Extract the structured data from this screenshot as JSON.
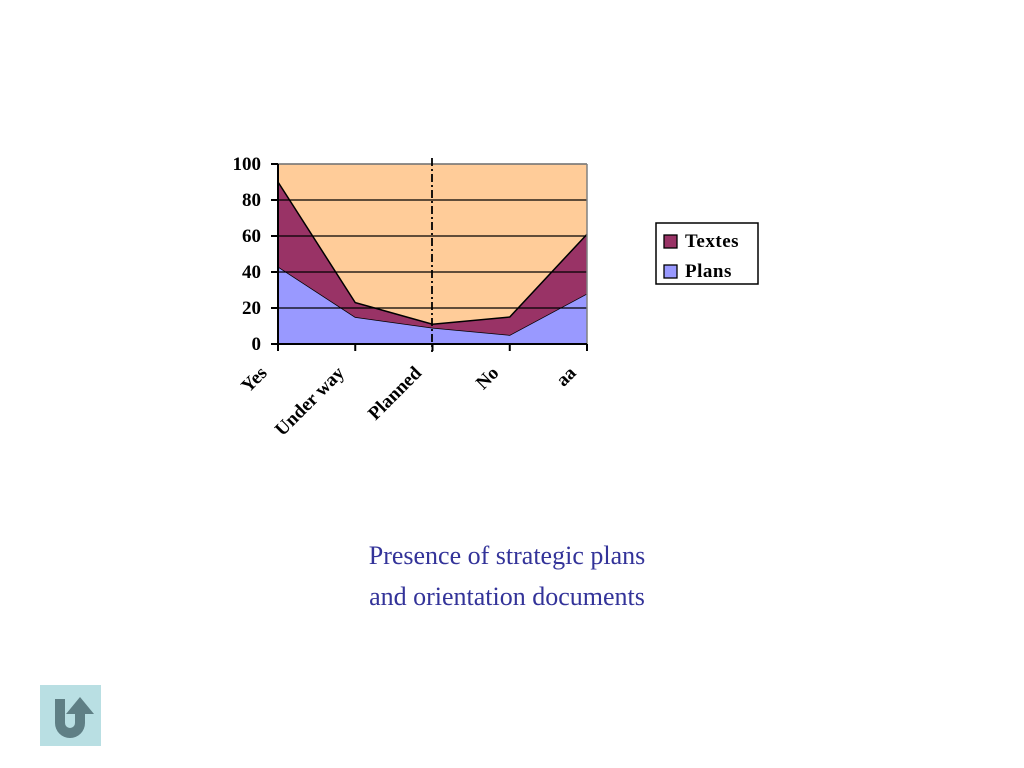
{
  "chart_data": {
    "type": "area",
    "stacked": true,
    "categories": [
      "Yes",
      "Under way",
      "Planned",
      "No",
      "aa"
    ],
    "series": [
      {
        "name": "Plans",
        "values": [
          43,
          15,
          9,
          5,
          28
        ],
        "color": "#9999ff"
      },
      {
        "name": "Textes",
        "values": [
          47,
          8,
          2,
          10,
          33
        ],
        "color": "#993366"
      }
    ],
    "ylim": [
      0,
      100
    ],
    "yticks": [
      0,
      20,
      40,
      60,
      80,
      100
    ],
    "gridlines": true,
    "plot_background": "#ffcc99",
    "divider_after_category": "Planned",
    "legend": {
      "placement": "right",
      "order": [
        "Textes",
        "Plans"
      ]
    }
  },
  "caption": {
    "line1": "Presence of strategic plans",
    "line2": "and orientation documents",
    "color": "#333399"
  },
  "nav": {
    "return_icon": "u-turn-arrow-icon",
    "button_color": "#b9dfe3",
    "icon_color": "#5f7f85"
  }
}
